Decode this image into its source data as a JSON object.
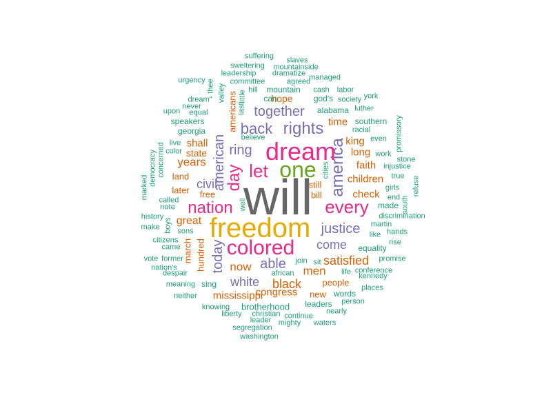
{
  "colors": {
    "teal": "#1b9e77",
    "orange": "#d95f02",
    "purple": "#7570b3",
    "magenta": "#e7298a",
    "green": "#66a61e",
    "gold": "#e6ab02",
    "gray": "#666666"
  },
  "words": [
    {
      "text": "will",
      "color": "gray",
      "vertical": false
    },
    {
      "text": "freedom",
      "color": "gold",
      "vertical": false
    },
    {
      "text": "dream",
      "color": "magenta",
      "vertical": false
    },
    {
      "text": "one",
      "color": "green",
      "vertical": false
    },
    {
      "text": "colored",
      "color": "magenta",
      "vertical": false
    },
    {
      "text": "every",
      "color": "magenta",
      "vertical": false
    },
    {
      "text": "let",
      "color": "magenta",
      "vertical": false
    },
    {
      "text": "nation",
      "color": "magenta",
      "vertical": false
    },
    {
      "text": "rights",
      "color": "purple",
      "vertical": false
    },
    {
      "text": "day",
      "color": "magenta",
      "vertical": true
    },
    {
      "text": "america",
      "color": "purple",
      "vertical": true
    },
    {
      "text": "back",
      "color": "purple",
      "vertical": false
    },
    {
      "text": "ring",
      "color": "purple",
      "vertical": false
    },
    {
      "text": "together",
      "color": "purple",
      "vertical": false
    },
    {
      "text": "justice",
      "color": "purple",
      "vertical": false
    },
    {
      "text": "american",
      "color": "purple",
      "vertical": true
    },
    {
      "text": "today",
      "color": "purple",
      "vertical": true
    },
    {
      "text": "able",
      "color": "purple",
      "vertical": false
    },
    {
      "text": "come",
      "color": "purple",
      "vertical": false
    },
    {
      "text": "white",
      "color": "purple",
      "vertical": false
    },
    {
      "text": "black",
      "color": "orange",
      "vertical": false
    },
    {
      "text": "civil",
      "color": "purple",
      "vertical": false
    },
    {
      "text": "satisfied",
      "color": "orange",
      "vertical": false
    },
    {
      "text": "now",
      "color": "orange",
      "vertical": false
    },
    {
      "text": "men",
      "color": "orange",
      "vertical": false
    },
    {
      "text": "years",
      "color": "orange",
      "vertical": false
    },
    {
      "text": "great",
      "color": "orange",
      "vertical": false
    },
    {
      "text": "mississippi",
      "color": "orange",
      "vertical": false
    },
    {
      "text": "congress",
      "color": "orange",
      "vertical": false
    },
    {
      "text": "time",
      "color": "orange",
      "vertical": false
    },
    {
      "text": "long",
      "color": "orange",
      "vertical": false
    },
    {
      "text": "faith",
      "color": "orange",
      "vertical": false
    },
    {
      "text": "children",
      "color": "orange",
      "vertical": false
    },
    {
      "text": "check",
      "color": "orange",
      "vertical": false
    },
    {
      "text": "king",
      "color": "orange",
      "vertical": false
    },
    {
      "text": "shall",
      "color": "orange",
      "vertical": false
    },
    {
      "text": "state",
      "color": "orange",
      "vertical": false
    },
    {
      "text": "land",
      "color": "orange",
      "vertical": false
    },
    {
      "text": "later",
      "color": "orange",
      "vertical": false
    },
    {
      "text": "free",
      "color": "orange",
      "vertical": false
    },
    {
      "text": "still",
      "color": "orange",
      "vertical": false
    },
    {
      "text": "bill",
      "color": "orange",
      "vertical": false
    },
    {
      "text": "hope",
      "color": "orange",
      "vertical": false
    },
    {
      "text": "people",
      "color": "orange",
      "vertical": false
    },
    {
      "text": "new",
      "color": "orange",
      "vertical": false
    },
    {
      "text": "march",
      "color": "orange",
      "vertical": true
    },
    {
      "text": "hundred",
      "color": "orange",
      "vertical": true
    },
    {
      "text": "americans",
      "color": "orange",
      "vertical": true
    },
    {
      "text": "suffering",
      "color": "teal",
      "vertical": false
    },
    {
      "text": "slaves",
      "color": "teal",
      "vertical": false
    },
    {
      "text": "sweltering",
      "color": "teal",
      "vertical": false
    },
    {
      "text": "mountainside",
      "color": "teal",
      "vertical": false
    },
    {
      "text": "leadership",
      "color": "teal",
      "vertical": false
    },
    {
      "text": "dramatize",
      "color": "teal",
      "vertical": false
    },
    {
      "text": "managed",
      "color": "teal",
      "vertical": false
    },
    {
      "text": "urgency",
      "color": "teal",
      "vertical": false
    },
    {
      "text": "thee",
      "color": "teal",
      "vertical": true
    },
    {
      "text": "committee",
      "color": "teal",
      "vertical": false
    },
    {
      "text": "agreed",
      "color": "teal",
      "vertical": false
    },
    {
      "text": "hill",
      "color": "teal",
      "vertical": false
    },
    {
      "text": "mountain",
      "color": "teal",
      "vertical": false
    },
    {
      "text": "cash",
      "color": "teal",
      "vertical": false
    },
    {
      "text": "labor",
      "color": "teal",
      "vertical": false
    },
    {
      "text": "valley",
      "color": "teal",
      "vertical": true
    },
    {
      "text": "york",
      "color": "teal",
      "vertical": false
    },
    {
      "text": "never",
      "color": "teal",
      "vertical": false
    },
    {
      "text": "dream\"",
      "color": "teal",
      "vertical": false
    },
    {
      "text": "can",
      "color": "teal",
      "vertical": false
    },
    {
      "text": "god's",
      "color": "teal",
      "vertical": false
    },
    {
      "text": "society",
      "color": "teal",
      "vertical": false
    },
    {
      "text": "equal",
      "color": "teal",
      "vertical": false
    },
    {
      "text": "last",
      "color": "teal",
      "vertical": true
    },
    {
      "text": "little",
      "color": "teal",
      "vertical": true
    },
    {
      "text": "upon",
      "color": "teal",
      "vertical": false
    },
    {
      "text": "alabama",
      "color": "teal",
      "vertical": false
    },
    {
      "text": "luther",
      "color": "teal",
      "vertical": false
    },
    {
      "text": "speakers",
      "color": "teal",
      "vertical": false
    },
    {
      "text": "southern",
      "color": "teal",
      "vertical": false
    },
    {
      "text": "promissory",
      "color": "teal",
      "vertical": true
    },
    {
      "text": "georgia",
      "color": "teal",
      "vertical": false
    },
    {
      "text": "racial",
      "color": "teal",
      "vertical": false
    },
    {
      "text": "live",
      "color": "teal",
      "vertical": false
    },
    {
      "text": "believe",
      "color": "teal",
      "vertical": false
    },
    {
      "text": "even",
      "color": "teal",
      "vertical": false
    },
    {
      "text": "democracy",
      "color": "teal",
      "vertical": true
    },
    {
      "text": "color",
      "color": "teal",
      "vertical": false
    },
    {
      "text": "work",
      "color": "teal",
      "vertical": false
    },
    {
      "text": "concerned",
      "color": "teal",
      "vertical": true
    },
    {
      "text": "stone",
      "color": "teal",
      "vertical": false
    },
    {
      "text": "injustice",
      "color": "teal",
      "vertical": false
    },
    {
      "text": "cities",
      "color": "teal",
      "vertical": true
    },
    {
      "text": "true",
      "color": "teal",
      "vertical": false
    },
    {
      "text": "refuse",
      "color": "teal",
      "vertical": true
    },
    {
      "text": "girls",
      "color": "teal",
      "vertical": false
    },
    {
      "text": "marked",
      "color": "teal",
      "vertical": true
    },
    {
      "text": "called",
      "color": "teal",
      "vertical": false
    },
    {
      "text": "end",
      "color": "teal",
      "vertical": false
    },
    {
      "text": "well",
      "color": "teal",
      "vertical": true
    },
    {
      "text": "south",
      "color": "teal",
      "vertical": true
    },
    {
      "text": "note",
      "color": "teal",
      "vertical": false
    },
    {
      "text": "made",
      "color": "teal",
      "vertical": false
    },
    {
      "text": "history",
      "color": "teal",
      "vertical": false
    },
    {
      "text": "discrimination",
      "color": "teal",
      "vertical": false
    },
    {
      "text": "martin",
      "color": "teal",
      "vertical": false
    },
    {
      "text": "make",
      "color": "teal",
      "vertical": false
    },
    {
      "text": "boys",
      "color": "teal",
      "vertical": true
    },
    {
      "text": "sons",
      "color": "teal",
      "vertical": false
    },
    {
      "text": "hands",
      "color": "teal",
      "vertical": false
    },
    {
      "text": "like",
      "color": "teal",
      "vertical": false
    },
    {
      "text": "citizens",
      "color": "teal",
      "vertical": false
    },
    {
      "text": "rise",
      "color": "teal",
      "vertical": false
    },
    {
      "text": "came",
      "color": "teal",
      "vertical": false
    },
    {
      "text": "equality",
      "color": "teal",
      "vertical": false
    },
    {
      "text": "vote",
      "color": "teal",
      "vertical": false
    },
    {
      "text": "former",
      "color": "teal",
      "vertical": false
    },
    {
      "text": "join",
      "color": "teal",
      "vertical": false
    },
    {
      "text": "sit",
      "color": "teal",
      "vertical": false
    },
    {
      "text": "promise",
      "color": "teal",
      "vertical": false
    },
    {
      "text": "nation's",
      "color": "teal",
      "vertical": false
    },
    {
      "text": "conference",
      "color": "teal",
      "vertical": false
    },
    {
      "text": "life",
      "color": "teal",
      "vertical": false
    },
    {
      "text": "despair",
      "color": "teal",
      "vertical": false
    },
    {
      "text": "african",
      "color": "teal",
      "vertical": false
    },
    {
      "text": "kennedy",
      "color": "teal",
      "vertical": false
    },
    {
      "text": "meaning",
      "color": "teal",
      "vertical": false
    },
    {
      "text": "sing",
      "color": "teal",
      "vertical": false
    },
    {
      "text": "places",
      "color": "teal",
      "vertical": false
    },
    {
      "text": "neither",
      "color": "teal",
      "vertical": false
    },
    {
      "text": "words",
      "color": "teal",
      "vertical": false
    },
    {
      "text": "leaders",
      "color": "teal",
      "vertical": false
    },
    {
      "text": "person",
      "color": "teal",
      "vertical": false
    },
    {
      "text": "knowing",
      "color": "teal",
      "vertical": false
    },
    {
      "text": "brotherhood",
      "color": "teal",
      "vertical": false
    },
    {
      "text": "nearly",
      "color": "teal",
      "vertical": false
    },
    {
      "text": "liberty",
      "color": "teal",
      "vertical": false
    },
    {
      "text": "christian",
      "color": "teal",
      "vertical": false
    },
    {
      "text": "continue",
      "color": "teal",
      "vertical": false
    },
    {
      "text": "leader",
      "color": "teal",
      "vertical": false
    },
    {
      "text": "mighty",
      "color": "teal",
      "vertical": false
    },
    {
      "text": "waters",
      "color": "teal",
      "vertical": false
    },
    {
      "text": "segregation",
      "color": "teal",
      "vertical": false
    },
    {
      "text": "washington",
      "color": "teal",
      "vertical": false
    }
  ]
}
